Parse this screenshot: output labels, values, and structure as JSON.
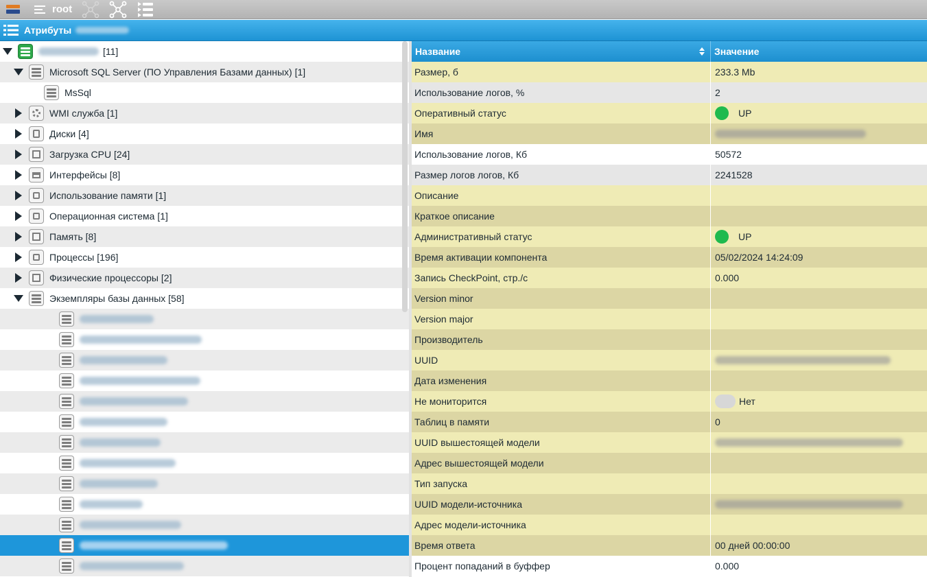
{
  "toolbar": {
    "root_label": "root",
    "icons": [
      "app-logo",
      "menu-icon",
      "topology-icon-disabled",
      "topology-icon",
      "attribute-list-icon"
    ]
  },
  "attributes_panel": {
    "title": "Атрибуты"
  },
  "tree": {
    "root": {
      "count_label": "[11]"
    },
    "items": [
      {
        "label": "Microsoft SQL Server (ПО Управления Базами данных) [1]",
        "level": 1,
        "expanded": true,
        "icon": "server-icon"
      },
      {
        "label": "MsSql",
        "level": 2,
        "expanded": null,
        "icon": "server-icon"
      },
      {
        "label": "WMI служба [1]",
        "level": 1,
        "expanded": false,
        "icon": "gear-icon"
      },
      {
        "label": "Диски [4]",
        "level": 1,
        "expanded": false,
        "icon": "disk-icon"
      },
      {
        "label": "Загрузка CPU [24]",
        "level": 1,
        "expanded": false,
        "icon": "chip-icon"
      },
      {
        "label": "Интерфейсы [8]",
        "level": 1,
        "expanded": false,
        "icon": "port-icon"
      },
      {
        "label": "Использование памяти [1]",
        "level": 1,
        "expanded": false,
        "icon": "square-icon"
      },
      {
        "label": "Операционная система [1]",
        "level": 1,
        "expanded": false,
        "icon": "square-icon"
      },
      {
        "label": "Память [8]",
        "level": 1,
        "expanded": false,
        "icon": "chip-icon"
      },
      {
        "label": "Процессы [196]",
        "level": 1,
        "expanded": false,
        "icon": "square-icon"
      },
      {
        "label": "Физические процессоры [2]",
        "level": 1,
        "expanded": false,
        "icon": "chip-icon"
      },
      {
        "label": "Экземпляры базы данных [58]",
        "level": 1,
        "expanded": true,
        "icon": "server-icon"
      }
    ],
    "blurred_children_count": 13,
    "selected_child_index": 11
  },
  "table": {
    "header": {
      "name": "Название",
      "value": "Значение"
    },
    "rows": [
      {
        "name": "Размер, б",
        "value": "233.3 Mb",
        "kind": "text"
      },
      {
        "name": "Использование логов, %",
        "value": "2",
        "kind": "text"
      },
      {
        "name": "Оперативный статус",
        "value": "UP",
        "kind": "status"
      },
      {
        "name": "Имя",
        "value": "",
        "kind": "blur"
      },
      {
        "name": "Использование логов, Кб",
        "value": "50572",
        "kind": "text"
      },
      {
        "name": "Размер логов логов, Кб",
        "value": "2241528",
        "kind": "text"
      },
      {
        "name": "Описание",
        "value": "",
        "kind": "text"
      },
      {
        "name": "Краткое описание",
        "value": "",
        "kind": "text"
      },
      {
        "name": "Административный статус",
        "value": "UP",
        "kind": "status"
      },
      {
        "name": "Время активации компонента",
        "value": "05/02/2024 14:24:09",
        "kind": "text"
      },
      {
        "name": "Запись CheckPoint, стр./с",
        "value": "0.000",
        "kind": "text"
      },
      {
        "name": "Version minor",
        "value": "",
        "kind": "text"
      },
      {
        "name": "Version major",
        "value": "",
        "kind": "text"
      },
      {
        "name": "Производитель",
        "value": "",
        "kind": "text"
      },
      {
        "name": "UUID",
        "value": "",
        "kind": "blur"
      },
      {
        "name": "Дата изменения",
        "value": "",
        "kind": "text"
      },
      {
        "name": "Не мониторится",
        "value": "Нет",
        "kind": "toggle"
      },
      {
        "name": "Таблиц в памяти",
        "value": "0",
        "kind": "text"
      },
      {
        "name": "UUID вышестоящей модели",
        "value": "",
        "kind": "blur"
      },
      {
        "name": "Адрес вышестоящей модели",
        "value": "",
        "kind": "text"
      },
      {
        "name": "Тип запуска",
        "value": "",
        "kind": "text"
      },
      {
        "name": "UUID модели-источника",
        "value": "",
        "kind": "blur"
      },
      {
        "name": "Адрес модели-источника",
        "value": "",
        "kind": "text"
      },
      {
        "name": "Время ответа",
        "value": "00 дней 00:00:00",
        "kind": "text"
      },
      {
        "name": "Процент попаданий в буффер",
        "value": "0.000",
        "kind": "text"
      }
    ]
  },
  "colors": {
    "header_blue": "#1e93d4",
    "selected_row": "#1e96da",
    "status_green": "#1fba4e",
    "row_yellow": "#efebb5",
    "row_tan": "#dcd6a4",
    "row_gray": "#e6e6e6"
  }
}
